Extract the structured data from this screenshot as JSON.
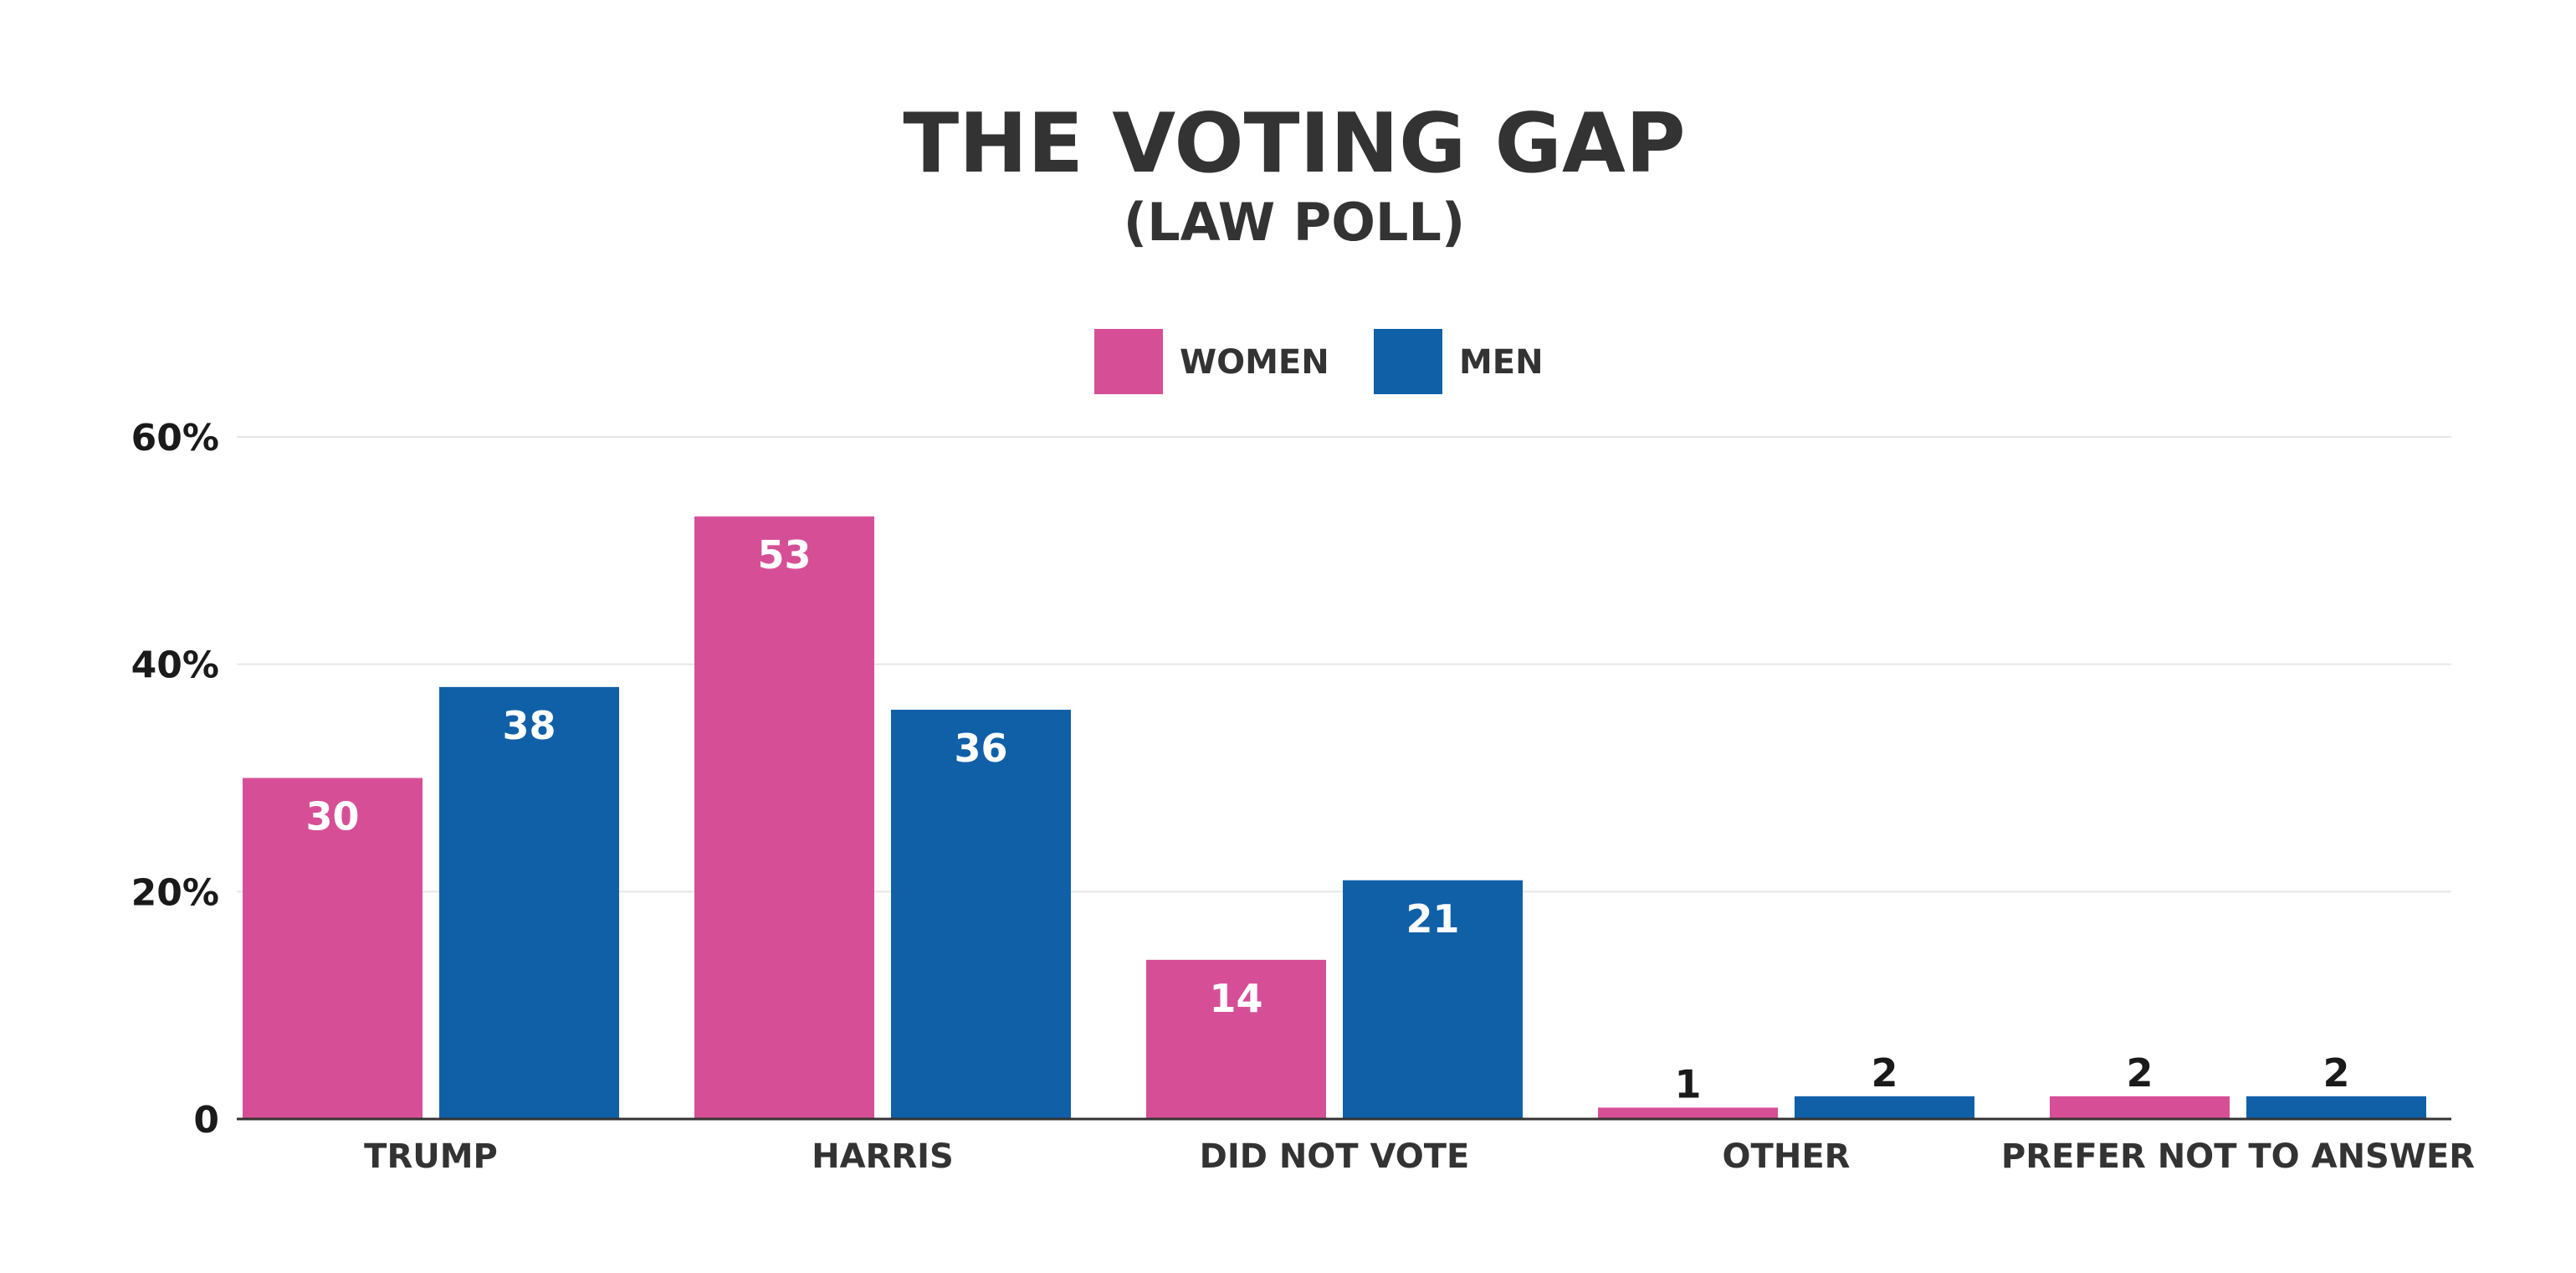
{
  "chart_data": {
    "type": "bar",
    "title": "THE VOTING GAP",
    "subtitle": "(LAW POLL)",
    "categories": [
      "TRUMP",
      "HARRIS",
      "DID NOT VOTE",
      "OTHER",
      "PREFER NOT TO ANSWER"
    ],
    "series": [
      {
        "name": "WOMEN",
        "color": "#d64f96",
        "values": [
          30,
          53,
          14,
          1,
          2
        ]
      },
      {
        "name": "MEN",
        "color": "#1060a8",
        "values": [
          38,
          36,
          21,
          2,
          2
        ]
      }
    ],
    "yticks": [
      {
        "value": 0,
        "label": "0"
      },
      {
        "value": 20,
        "label": "20%"
      },
      {
        "value": 40,
        "label": "40%"
      },
      {
        "value": 60,
        "label": "60%"
      }
    ],
    "ylim": [
      0,
      60
    ],
    "grid": true,
    "legend_position": "top-center"
  }
}
